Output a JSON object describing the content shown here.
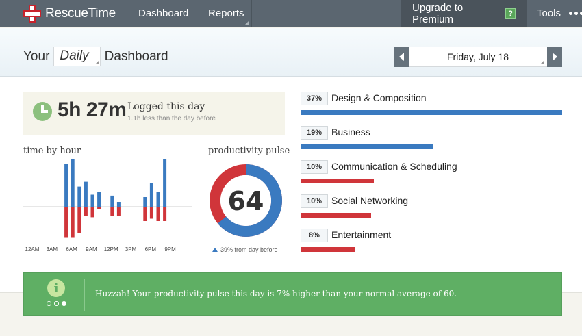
{
  "nav": {
    "brand": "RescueTime",
    "dashboard": "Dashboard",
    "reports": "Reports",
    "upgrade": "Upgrade to Premium",
    "help": "?",
    "tools": "Tools"
  },
  "header": {
    "your": "Your",
    "period": "Daily",
    "dashboard": "Dashboard",
    "date": "Friday, July 18"
  },
  "summary": {
    "total": "5h 27m",
    "label": "Logged this day",
    "sub": "1.1h less than the day before"
  },
  "time_by_hour": {
    "title": "time by hour",
    "ticks": [
      "12AM",
      "3AM",
      "6AM",
      "9AM",
      "12PM",
      "3PM",
      "6PM",
      "9PM"
    ]
  },
  "pulse": {
    "title": "productivity pulse",
    "value": "64",
    "change": "39% from day before",
    "productive_fraction": 0.64
  },
  "chart_data": {
    "type": "bar",
    "x": [
      6,
      7,
      8,
      9,
      10,
      11,
      12,
      13,
      14,
      18,
      19,
      20,
      21
    ],
    "series": [
      {
        "values": [
          0.9,
          1.0,
          0.42,
          0.52,
          0.25,
          0.3,
          0,
          0.23,
          0.1,
          0.2,
          0.5,
          0.3,
          1.0
        ]
      },
      {
        "values": [
          -0.65,
          -0.65,
          -0.55,
          -0.2,
          -0.22,
          -0.05,
          0,
          -0.2,
          -0.2,
          -0.3,
          -0.25,
          -0.3,
          -0.3
        ]
      }
    ],
    "colors": [
      "#3a7ac0",
      "#d0353a"
    ]
  },
  "categories": [
    {
      "pct": "37%",
      "name": "Design & Composition",
      "width": 1.0,
      "color": "#3a7ac0"
    },
    {
      "pct": "19%",
      "name": "Business",
      "width": 0.505,
      "color": "#3a7ac0"
    },
    {
      "pct": "10%",
      "name": "Communication & Scheduling",
      "width": 0.28,
      "color": "#d0353a"
    },
    {
      "pct": "10%",
      "name": "Social Networking",
      "width": 0.27,
      "color": "#d0353a"
    },
    {
      "pct": "8%",
      "name": "Entertainment",
      "width": 0.21,
      "color": "#d0353a"
    }
  ],
  "banner": {
    "text": "Huzzah! Your productivity pulse this day is 7% higher than your normal average of 60."
  }
}
